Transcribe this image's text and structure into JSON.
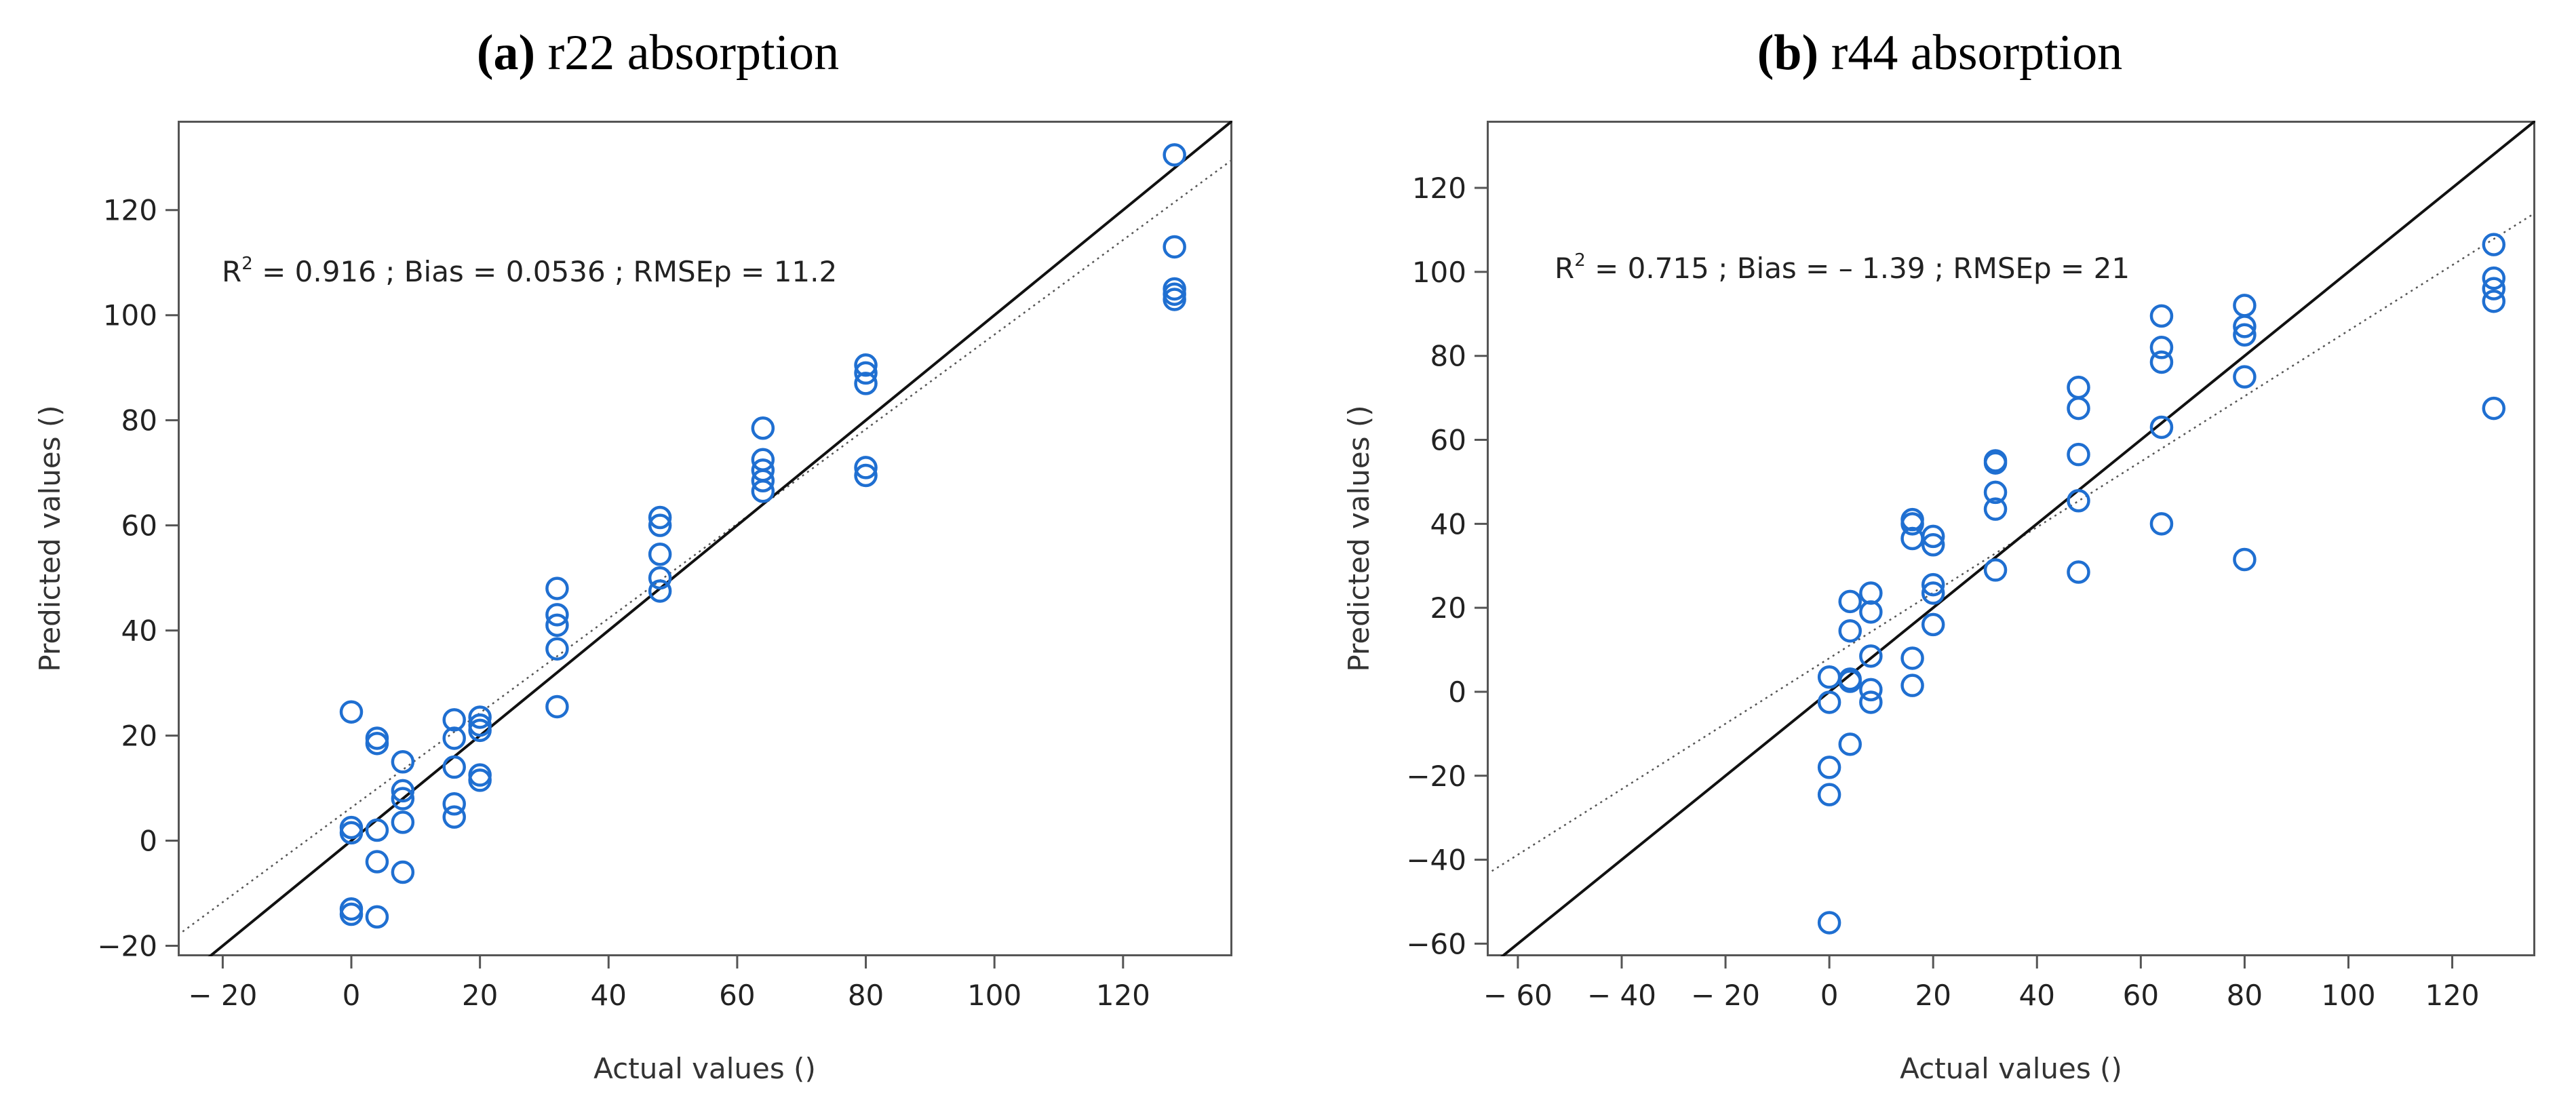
{
  "chart_data": [
    {
      "type": "scatter",
      "panel_tag": "(a)",
      "panel_name": "r22 absorption",
      "xlabel": "Actual values ()",
      "ylabel": "Predicted values ()",
      "stats": {
        "r2_label": "R",
        "r2_sup": "2",
        "rest": " = 0.916 ; Bias = 0.0536 ; RMSEp = 11.2"
      },
      "xlim": [
        -27,
        137
      ],
      "ylim": [
        -22,
        137
      ],
      "xticks": [
        -20,
        0,
        20,
        40,
        60,
        80,
        100,
        120
      ],
      "xtick_labels": [
        "− 20",
        "0",
        "20",
        "40",
        "60",
        "80",
        "100",
        "120"
      ],
      "yticks": [
        -20,
        0,
        20,
        40,
        60,
        80,
        100,
        120
      ],
      "ytick_labels": [
        "−20",
        "0",
        "20",
        "40",
        "60",
        "80",
        "100",
        "120"
      ],
      "identity_line": {
        "slope": 1,
        "intercept": 0
      },
      "fit_line": {
        "slope": 0.9,
        "intercept": 6.3
      },
      "marker_color": "#1f6fd1",
      "points": [
        [
          0,
          24.5
        ],
        [
          0,
          2.5
        ],
        [
          0,
          1.5
        ],
        [
          0,
          -13
        ],
        [
          0,
          -14
        ],
        [
          4,
          19.5
        ],
        [
          4,
          18.5
        ],
        [
          4,
          2
        ],
        [
          4,
          -4
        ],
        [
          4,
          -14.5
        ],
        [
          8,
          15
        ],
        [
          8,
          9.5
        ],
        [
          8,
          8
        ],
        [
          8,
          3.5
        ],
        [
          8,
          -6
        ],
        [
          16,
          23
        ],
        [
          16,
          19.5
        ],
        [
          16,
          14
        ],
        [
          16,
          7
        ],
        [
          16,
          4.5
        ],
        [
          20,
          23.5
        ],
        [
          20,
          22
        ],
        [
          20,
          21
        ],
        [
          20,
          12.5
        ],
        [
          20,
          11.5
        ],
        [
          32,
          48
        ],
        [
          32,
          43
        ],
        [
          32,
          41
        ],
        [
          32,
          36.5
        ],
        [
          32,
          25.5
        ],
        [
          48,
          61.5
        ],
        [
          48,
          60
        ],
        [
          48,
          54.5
        ],
        [
          48,
          50
        ],
        [
          48,
          47.5
        ],
        [
          64,
          78.5
        ],
        [
          64,
          72.5
        ],
        [
          64,
          70.5
        ],
        [
          64,
          68.5
        ],
        [
          64,
          66.5
        ],
        [
          80,
          90.5
        ],
        [
          80,
          89
        ],
        [
          80,
          87
        ],
        [
          80,
          71
        ],
        [
          80,
          69.5
        ],
        [
          128,
          130.5
        ],
        [
          128,
          113
        ],
        [
          128,
          105
        ],
        [
          128,
          104
        ],
        [
          128,
          103
        ]
      ]
    },
    {
      "type": "scatter",
      "panel_tag": "(b)",
      "panel_name": "r44 absorption",
      "xlabel": "Actual values ()",
      "ylabel": "Predicted values ()",
      "stats": {
        "r2_label": "R",
        "r2_sup": "2",
        "rest": " = 0.715 ; Bias = – 1.39 ; RMSEp = 21"
      },
      "xlim": [
        -66,
        136
      ],
      "ylim": [
        -63,
        136
      ],
      "xticks": [
        -60,
        -40,
        -20,
        0,
        20,
        40,
        60,
        80,
        100,
        120
      ],
      "xtick_labels": [
        "− 60",
        "− 40",
        "− 20",
        "0",
        "20",
        "40",
        "60",
        "80",
        "100",
        "120"
      ],
      "yticks": [
        -60,
        -40,
        -20,
        0,
        20,
        40,
        60,
        80,
        100,
        120
      ],
      "ytick_labels": [
        "−60",
        "−40",
        "−20",
        "0",
        "20",
        "40",
        "60",
        "80",
        "100",
        "120"
      ],
      "identity_line": {
        "slope": 1,
        "intercept": 0
      },
      "fit_line": {
        "slope": 0.78,
        "intercept": 8
      },
      "marker_color": "#1f6fd1",
      "points": [
        [
          0,
          3.5
        ],
        [
          0,
          -2.5
        ],
        [
          0,
          -18
        ],
        [
          0,
          -24.5
        ],
        [
          0,
          -55
        ],
        [
          4,
          21.5
        ],
        [
          4,
          14.5
        ],
        [
          4,
          3
        ],
        [
          4,
          2.5
        ],
        [
          4,
          -12.5
        ],
        [
          8,
          23.5
        ],
        [
          8,
          19
        ],
        [
          8,
          8.5
        ],
        [
          8,
          0.5
        ],
        [
          8,
          -2.5
        ],
        [
          16,
          41
        ],
        [
          16,
          40
        ],
        [
          16,
          36.5
        ],
        [
          16,
          8
        ],
        [
          16,
          1.5
        ],
        [
          20,
          37
        ],
        [
          20,
          35
        ],
        [
          20,
          25.5
        ],
        [
          20,
          23.5
        ],
        [
          20,
          16
        ],
        [
          32,
          55
        ],
        [
          32,
          54.5
        ],
        [
          32,
          47.5
        ],
        [
          32,
          43.5
        ],
        [
          32,
          29
        ],
        [
          48,
          72.5
        ],
        [
          48,
          67.5
        ],
        [
          48,
          56.5
        ],
        [
          48,
          45.5
        ],
        [
          48,
          28.5
        ],
        [
          64,
          89.5
        ],
        [
          64,
          82
        ],
        [
          64,
          78.5
        ],
        [
          64,
          63
        ],
        [
          64,
          40
        ],
        [
          80,
          92
        ],
        [
          80,
          87
        ],
        [
          80,
          85
        ],
        [
          80,
          75
        ],
        [
          80,
          31.5
        ],
        [
          128,
          106.5
        ],
        [
          128,
          98.5
        ],
        [
          128,
          96
        ],
        [
          128,
          93
        ],
        [
          128,
          67.5
        ]
      ]
    }
  ]
}
